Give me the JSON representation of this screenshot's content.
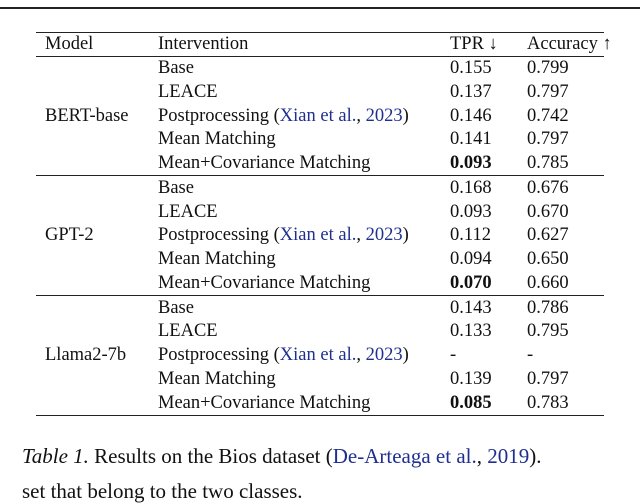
{
  "table": {
    "header": [
      "Model",
      "Intervention",
      "TPR ↓",
      "Accuracy ↑"
    ],
    "groups": [
      {
        "model": "BERT-base",
        "bold_row": 4,
        "rows": [
          {
            "intervention": "Base",
            "tpr": "0.155",
            "accuracy": "0.799"
          },
          {
            "intervention": "LEACE",
            "tpr": "0.137",
            "accuracy": "0.797"
          },
          {
            "intervention": "Postprocessing (",
            "cite": "Xian et al.",
            "sep": ", ",
            "year": "2023",
            "close": ")",
            "tpr": "0.146",
            "accuracy": "0.742"
          },
          {
            "intervention": "Mean Matching",
            "tpr": "0.141",
            "accuracy": "0.797"
          },
          {
            "intervention": "Mean+Covariance Matching",
            "tpr": "0.093",
            "accuracy": "0.785"
          }
        ]
      },
      {
        "model": "GPT-2",
        "bold_row": 4,
        "rows": [
          {
            "intervention": "Base",
            "tpr": "0.168",
            "accuracy": "0.676"
          },
          {
            "intervention": "LEACE",
            "tpr": "0.093",
            "accuracy": "0.670"
          },
          {
            "intervention": "Postprocessing (",
            "cite": "Xian et al.",
            "sep": ", ",
            "year": "2023",
            "close": ")",
            "tpr": "0.112",
            "accuracy": "0.627"
          },
          {
            "intervention": "Mean Matching",
            "tpr": "0.094",
            "accuracy": "0.650"
          },
          {
            "intervention": "Mean+Covariance Matching",
            "tpr": "0.070",
            "accuracy": "0.660"
          }
        ]
      },
      {
        "model": "Llama2-7b",
        "bold_row": 4,
        "rows": [
          {
            "intervention": "Base",
            "tpr": "0.143",
            "accuracy": "0.786"
          },
          {
            "intervention": "LEACE",
            "tpr": "0.133",
            "accuracy": "0.795"
          },
          {
            "intervention": "Postprocessing (",
            "cite": "Xian et al.",
            "sep": ", ",
            "year": "2023",
            "close": ")",
            "tpr": "-",
            "accuracy": "-"
          },
          {
            "intervention": "Mean Matching",
            "tpr": "0.139",
            "accuracy": "0.797"
          },
          {
            "intervention": "Mean+Covariance Matching",
            "tpr": "0.085",
            "accuracy": "0.783"
          }
        ]
      }
    ]
  },
  "caption": {
    "label": "Table 1.",
    "text": " Results on the Bios dataset (",
    "cite": "De-Arteaga et al.",
    "sep": ", ",
    "year": "2019",
    "close": ")."
  },
  "following_text": "set that belong to the two classes."
}
